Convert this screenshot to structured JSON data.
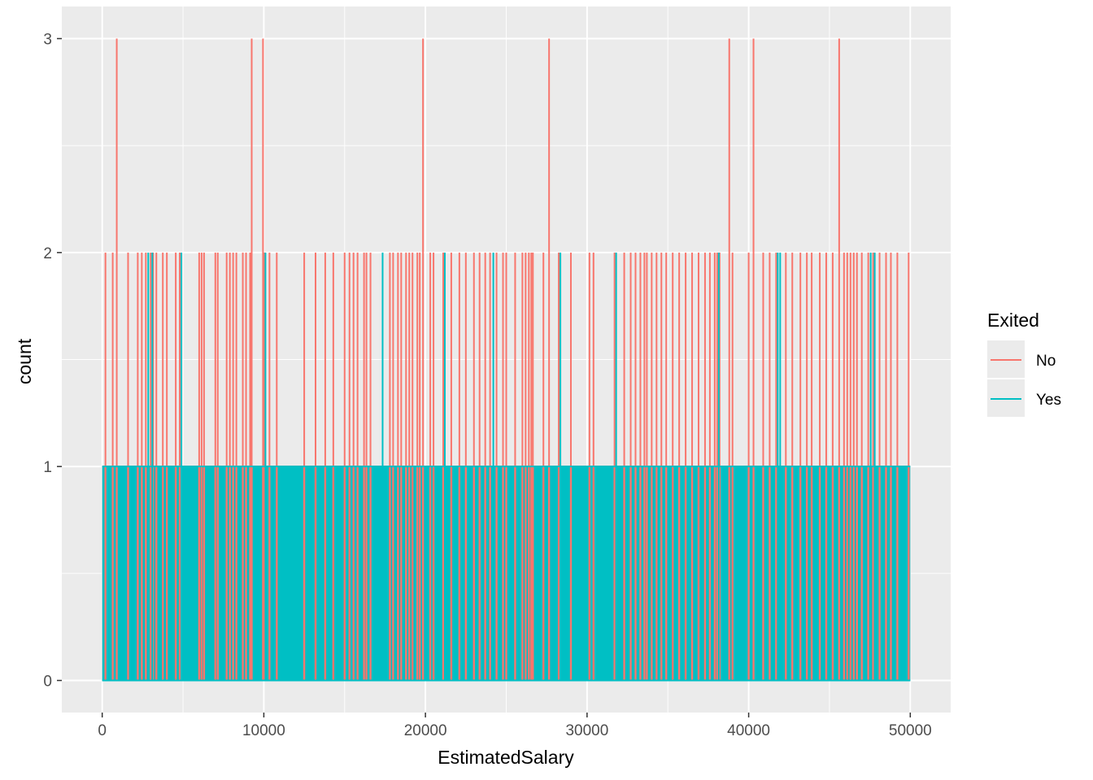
{
  "chart_data": {
    "type": "line",
    "title": "",
    "xlabel": "EstimatedSalary",
    "ylabel": "count",
    "xlim": [
      -2500,
      52500
    ],
    "ylim": [
      -0.15,
      3.15
    ],
    "x_ticks": [
      0,
      10000,
      20000,
      30000,
      40000,
      50000
    ],
    "x_tick_labels": [
      "0",
      "10000",
      "20000",
      "30000",
      "40000",
      "50000"
    ],
    "y_ticks": [
      0,
      1,
      2,
      3
    ],
    "y_tick_labels": [
      "0",
      "1",
      "2",
      "3"
    ],
    "grid": true,
    "legend": {
      "title": "Exited",
      "position": "right"
    },
    "x_min": 0,
    "x_max": 50000,
    "series": [
      {
        "name": "No",
        "color": "#F8766D",
        "count_2_x": [
          200,
          650,
          1600,
          2200,
          2450,
          2700,
          3000,
          3150,
          3350,
          3750,
          4000,
          4550,
          4800,
          6000,
          6150,
          6300,
          7000,
          7150,
          7700,
          7900,
          8100,
          8300,
          8700,
          8900,
          9150,
          10050,
          10350,
          10800,
          12500,
          13200,
          13800,
          14300,
          15000,
          15300,
          15550,
          15800,
          16200,
          16350,
          16600,
          17800,
          18000,
          18300,
          18500,
          18800,
          19000,
          19200,
          19500,
          19650,
          20300,
          20500,
          21100,
          21600,
          22100,
          22500,
          23000,
          23350,
          23700,
          24000,
          24400,
          24800,
          25000,
          25550,
          26000,
          26200,
          26400,
          26550,
          26650,
          27300,
          28250,
          29000,
          30150,
          30400,
          31700,
          32300,
          32700,
          33000,
          33300,
          33550,
          33700,
          34000,
          34300,
          34600,
          34900,
          35300,
          35700,
          36100,
          36500,
          36900,
          37300,
          37600,
          37900,
          38050,
          38200,
          39000,
          40000,
          40900,
          41300,
          41700,
          42300,
          42700,
          43200,
          43600,
          43900,
          44400,
          44800,
          45200,
          45900,
          46100,
          46300,
          46500,
          46700,
          47000,
          47400,
          47700,
          48100,
          48500,
          48800,
          49200,
          49900
        ],
        "count_3_x": [
          900,
          9250,
          9950,
          19850,
          27650,
          38800,
          40300,
          45600
        ],
        "count_1_range": [
          0,
          50000
        ]
      },
      {
        "name": "Yes",
        "color": "#00BFC4",
        "count_2_x": [
          2850,
          3100,
          4900,
          10100,
          17350,
          21200,
          24200,
          28350,
          31800,
          38150,
          41800,
          41950,
          47550,
          47800
        ],
        "count_1_range": [
          0,
          50000
        ]
      }
    ]
  }
}
